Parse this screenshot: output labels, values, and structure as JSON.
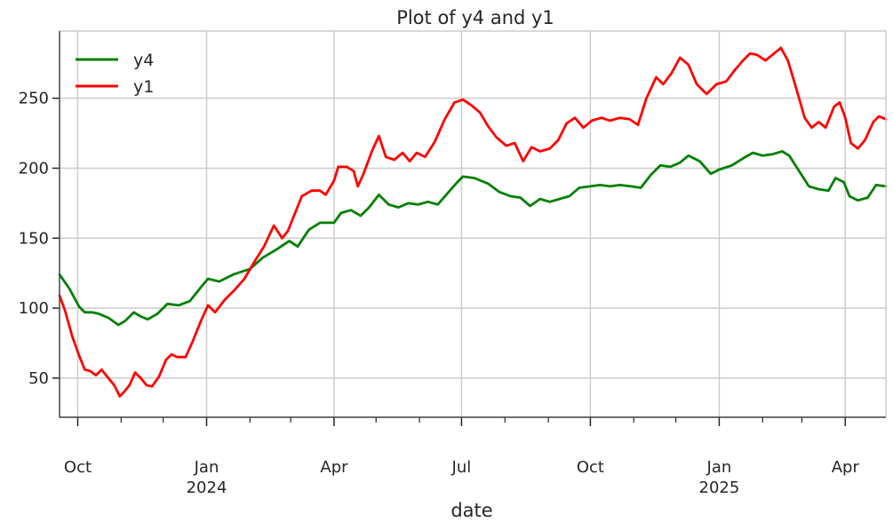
{
  "chart_data": {
    "type": "line",
    "title": "Plot of y4 and y1",
    "xlabel": "date",
    "ylabel": "",
    "xlim": [
      "2023-09-18",
      "2025-04-30"
    ],
    "ylim": [
      22,
      298
    ],
    "grid": true,
    "legend_position": "top-left",
    "y_ticks": [
      50,
      100,
      150,
      200,
      250
    ],
    "x_major_ticks": [
      {
        "date": "2023-10-01",
        "label": "Oct",
        "sublabel": ""
      },
      {
        "date": "2024-01-01",
        "label": "Jan",
        "sublabel": "2024"
      },
      {
        "date": "2024-04-01",
        "label": "Apr",
        "sublabel": ""
      },
      {
        "date": "2024-07-01",
        "label": "Jul",
        "sublabel": ""
      },
      {
        "date": "2024-10-01",
        "label": "Oct",
        "sublabel": ""
      },
      {
        "date": "2025-01-01",
        "label": "Jan",
        "sublabel": "2025"
      },
      {
        "date": "2025-04-01",
        "label": "Apr",
        "sublabel": ""
      }
    ],
    "x_minor_ticks": [
      "2023-09-01",
      "2023-11-01",
      "2023-12-01",
      "2024-02-01",
      "2024-03-01",
      "2024-05-01",
      "2024-06-01",
      "2024-08-01",
      "2024-09-01",
      "2024-11-01",
      "2024-12-01",
      "2025-02-01",
      "2025-03-01",
      "2025-05-01"
    ],
    "series": [
      {
        "name": "y4",
        "color": "#008000",
        "points": [
          [
            "2023-09-18",
            124
          ],
          [
            "2023-09-25",
            114
          ],
          [
            "2023-10-02",
            101
          ],
          [
            "2023-10-06",
            97
          ],
          [
            "2023-10-11",
            97
          ],
          [
            "2023-10-16",
            96
          ],
          [
            "2023-10-23",
            93
          ],
          [
            "2023-10-30",
            88
          ],
          [
            "2023-11-04",
            91
          ],
          [
            "2023-11-10",
            97
          ],
          [
            "2023-11-15",
            94
          ],
          [
            "2023-11-20",
            92
          ],
          [
            "2023-11-27",
            96
          ],
          [
            "2023-12-04",
            103
          ],
          [
            "2023-12-12",
            102
          ],
          [
            "2023-12-20",
            105
          ],
          [
            "2023-12-28",
            115
          ],
          [
            "2024-01-02",
            121
          ],
          [
            "2024-01-10",
            119
          ],
          [
            "2024-01-20",
            124
          ],
          [
            "2024-02-01",
            128
          ],
          [
            "2024-02-10",
            136
          ],
          [
            "2024-02-20",
            142
          ],
          [
            "2024-02-29",
            148
          ],
          [
            "2024-03-06",
            144
          ],
          [
            "2024-03-14",
            156
          ],
          [
            "2024-03-22",
            161
          ],
          [
            "2024-04-01",
            161
          ],
          [
            "2024-04-06",
            168
          ],
          [
            "2024-04-13",
            170
          ],
          [
            "2024-04-20",
            166
          ],
          [
            "2024-04-26",
            172
          ],
          [
            "2024-05-03",
            181
          ],
          [
            "2024-05-10",
            174
          ],
          [
            "2024-05-17",
            172
          ],
          [
            "2024-05-24",
            175
          ],
          [
            "2024-05-31",
            174
          ],
          [
            "2024-06-07",
            176
          ],
          [
            "2024-06-14",
            174
          ],
          [
            "2024-06-21",
            182
          ],
          [
            "2024-06-28",
            190
          ],
          [
            "2024-07-02",
            194
          ],
          [
            "2024-07-10",
            193
          ],
          [
            "2024-07-20",
            189
          ],
          [
            "2024-07-28",
            183
          ],
          [
            "2024-08-05",
            180
          ],
          [
            "2024-08-12",
            179
          ],
          [
            "2024-08-19",
            173
          ],
          [
            "2024-08-26",
            178
          ],
          [
            "2024-09-02",
            176
          ],
          [
            "2024-09-09",
            178
          ],
          [
            "2024-09-16",
            180
          ],
          [
            "2024-09-23",
            186
          ],
          [
            "2024-10-01",
            187
          ],
          [
            "2024-10-08",
            188
          ],
          [
            "2024-10-15",
            187
          ],
          [
            "2024-10-22",
            188
          ],
          [
            "2024-10-30",
            187
          ],
          [
            "2024-11-06",
            186
          ],
          [
            "2024-11-13",
            195
          ],
          [
            "2024-11-20",
            202
          ],
          [
            "2024-11-27",
            201
          ],
          [
            "2024-12-04",
            204
          ],
          [
            "2024-12-10",
            209
          ],
          [
            "2024-12-18",
            205
          ],
          [
            "2024-12-26",
            196
          ],
          [
            "2025-01-01",
            199
          ],
          [
            "2025-01-10",
            202
          ],
          [
            "2025-01-18",
            207
          ],
          [
            "2025-01-25",
            211
          ],
          [
            "2025-02-01",
            209
          ],
          [
            "2025-02-08",
            210
          ],
          [
            "2025-02-15",
            212
          ],
          [
            "2025-02-20",
            209
          ],
          [
            "2025-02-27",
            198
          ],
          [
            "2025-03-06",
            187
          ],
          [
            "2025-03-13",
            185
          ],
          [
            "2025-03-20",
            184
          ],
          [
            "2025-03-25",
            193
          ],
          [
            "2025-03-31",
            190
          ],
          [
            "2025-04-04",
            180
          ],
          [
            "2025-04-10",
            177
          ],
          [
            "2025-04-17",
            179
          ],
          [
            "2025-04-23",
            188
          ],
          [
            "2025-04-30",
            187
          ]
        ]
      },
      {
        "name": "y1",
        "color": "#ff0000",
        "points": [
          [
            "2023-09-18",
            109
          ],
          [
            "2023-09-22",
            98
          ],
          [
            "2023-09-27",
            80
          ],
          [
            "2023-10-02",
            66
          ],
          [
            "2023-10-06",
            56
          ],
          [
            "2023-10-10",
            55
          ],
          [
            "2023-10-14",
            52
          ],
          [
            "2023-10-18",
            56
          ],
          [
            "2023-10-22",
            51
          ],
          [
            "2023-10-27",
            45
          ],
          [
            "2023-10-31",
            37
          ],
          [
            "2023-11-03",
            40
          ],
          [
            "2023-11-07",
            45
          ],
          [
            "2023-11-11",
            54
          ],
          [
            "2023-11-15",
            50
          ],
          [
            "2023-11-19",
            45
          ],
          [
            "2023-11-23",
            44
          ],
          [
            "2023-11-28",
            51
          ],
          [
            "2023-12-03",
            63
          ],
          [
            "2023-12-07",
            67
          ],
          [
            "2023-12-11",
            65
          ],
          [
            "2023-12-17",
            65
          ],
          [
            "2023-12-22",
            76
          ],
          [
            "2023-12-28",
            91
          ],
          [
            "2024-01-02",
            102
          ],
          [
            "2024-01-07",
            97
          ],
          [
            "2024-01-14",
            106
          ],
          [
            "2024-01-21",
            113
          ],
          [
            "2024-01-28",
            121
          ],
          [
            "2024-02-04",
            133
          ],
          [
            "2024-02-11",
            144
          ],
          [
            "2024-02-18",
            159
          ],
          [
            "2024-02-24",
            150
          ],
          [
            "2024-02-28",
            155
          ],
          [
            "2024-03-03",
            165
          ],
          [
            "2024-03-09",
            180
          ],
          [
            "2024-03-16",
            184
          ],
          [
            "2024-03-22",
            184
          ],
          [
            "2024-03-26",
            181
          ],
          [
            "2024-04-01",
            191
          ],
          [
            "2024-04-04",
            201
          ],
          [
            "2024-04-10",
            201
          ],
          [
            "2024-04-15",
            198
          ],
          [
            "2024-04-18",
            187
          ],
          [
            "2024-04-22",
            196
          ],
          [
            "2024-04-28",
            212
          ],
          [
            "2024-05-03",
            223
          ],
          [
            "2024-05-08",
            208
          ],
          [
            "2024-05-14",
            206
          ],
          [
            "2024-05-20",
            211
          ],
          [
            "2024-05-25",
            205
          ],
          [
            "2024-05-30",
            211
          ],
          [
            "2024-06-05",
            208
          ],
          [
            "2024-06-12",
            219
          ],
          [
            "2024-06-19",
            235
          ],
          [
            "2024-06-26",
            247
          ],
          [
            "2024-07-02",
            249
          ],
          [
            "2024-07-08",
            245
          ],
          [
            "2024-07-14",
            240
          ],
          [
            "2024-07-20",
            230
          ],
          [
            "2024-07-26",
            222
          ],
          [
            "2024-08-02",
            216
          ],
          [
            "2024-08-08",
            218
          ],
          [
            "2024-08-14",
            205
          ],
          [
            "2024-08-20",
            215
          ],
          [
            "2024-08-26",
            212
          ],
          [
            "2024-09-02",
            214
          ],
          [
            "2024-09-08",
            220
          ],
          [
            "2024-09-14",
            232
          ],
          [
            "2024-09-20",
            236
          ],
          [
            "2024-09-26",
            229
          ],
          [
            "2024-10-02",
            234
          ],
          [
            "2024-10-09",
            236
          ],
          [
            "2024-10-15",
            234
          ],
          [
            "2024-10-22",
            236
          ],
          [
            "2024-10-29",
            235
          ],
          [
            "2024-11-04",
            231
          ],
          [
            "2024-11-10",
            250
          ],
          [
            "2024-11-17",
            265
          ],
          [
            "2024-11-22",
            260
          ],
          [
            "2024-11-28",
            268
          ],
          [
            "2024-12-04",
            279
          ],
          [
            "2024-12-10",
            274
          ],
          [
            "2024-12-16",
            260
          ],
          [
            "2024-12-23",
            253
          ],
          [
            "2024-12-30",
            260
          ],
          [
            "2025-01-06",
            262
          ],
          [
            "2025-01-12",
            270
          ],
          [
            "2025-01-18",
            277
          ],
          [
            "2025-01-23",
            282
          ],
          [
            "2025-01-28",
            281
          ],
          [
            "2025-02-03",
            277
          ],
          [
            "2025-02-08",
            281
          ],
          [
            "2025-02-14",
            286
          ],
          [
            "2025-02-19",
            277
          ],
          [
            "2025-02-25",
            257
          ],
          [
            "2025-03-03",
            236
          ],
          [
            "2025-03-08",
            229
          ],
          [
            "2025-03-13",
            233
          ],
          [
            "2025-03-18",
            229
          ],
          [
            "2025-03-24",
            244
          ],
          [
            "2025-03-28",
            247
          ],
          [
            "2025-04-01",
            236
          ],
          [
            "2025-04-05",
            218
          ],
          [
            "2025-04-10",
            214
          ],
          [
            "2025-04-15",
            220
          ],
          [
            "2025-04-21",
            233
          ],
          [
            "2025-04-25",
            237
          ],
          [
            "2025-04-30",
            235
          ]
        ]
      }
    ]
  }
}
